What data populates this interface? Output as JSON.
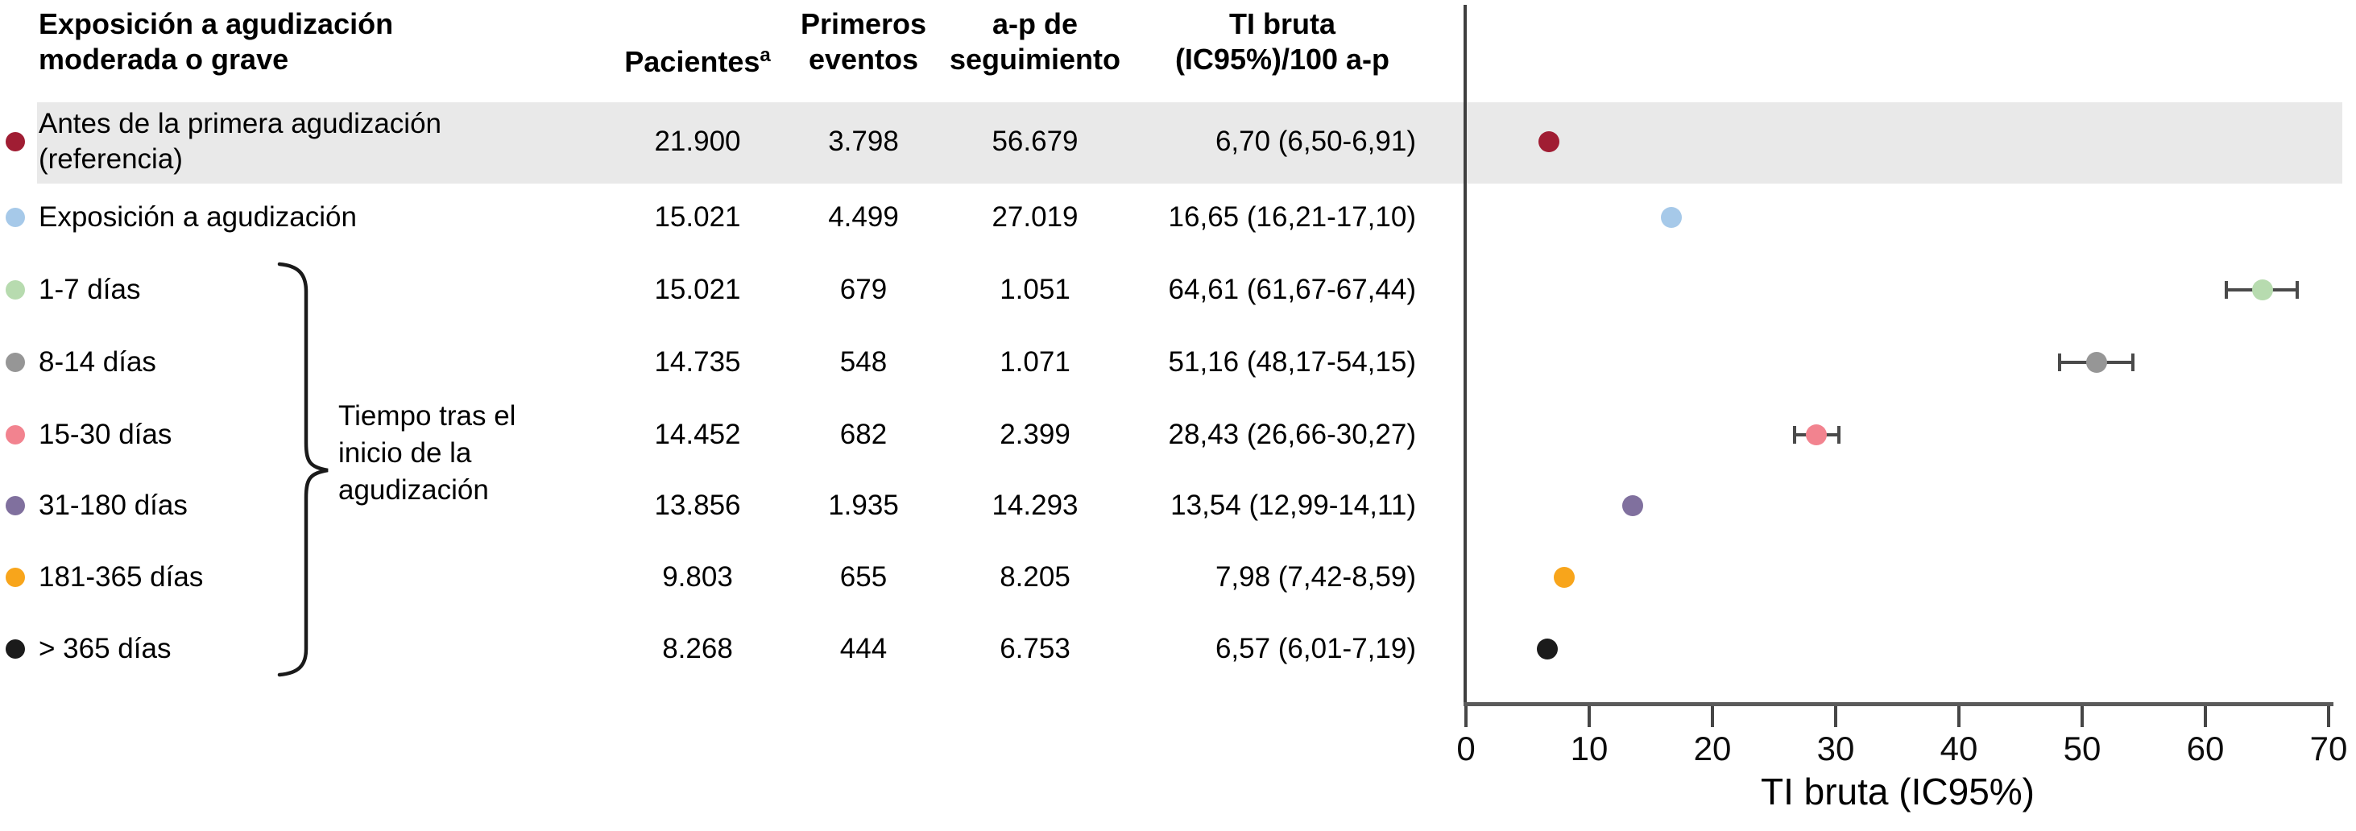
{
  "table": {
    "headers": {
      "exposure_line1": "Exposición a agudización",
      "exposure_line2": "moderada o grave",
      "pacientes": "Pacientes",
      "pacientes_sup": "a",
      "eventos_line1": "Primeros",
      "eventos_line2": "eventos",
      "ap_line1": "a-p de",
      "ap_line2": "seguimiento",
      "ti_line1": "TI bruta",
      "ti_line2": "(IC95%)/100 a-p"
    },
    "rows": [
      {
        "label": "Antes de la primera agudización (referencia)",
        "pacientes": "21.900",
        "eventos": "3.798",
        "ap": "56.679",
        "ti": "6,70 (6,50-6,91)"
      },
      {
        "label": "Exposición a agudización",
        "pacientes": "15.021",
        "eventos": "4.499",
        "ap": "27.019",
        "ti": "16,65 (16,21-17,10)"
      },
      {
        "label": "1-7 días",
        "pacientes": "15.021",
        "eventos": "679",
        "ap": "1.051",
        "ti": "64,61 (61,67-67,44)"
      },
      {
        "label": "8-14 días",
        "pacientes": "14.735",
        "eventos": "548",
        "ap": "1.071",
        "ti": "51,16 (48,17-54,15)"
      },
      {
        "label": "15-30 días",
        "pacientes": "14.452",
        "eventos": "682",
        "ap": "2.399",
        "ti": "28,43 (26,66-30,27)"
      },
      {
        "label": "31-180 días",
        "pacientes": "13.856",
        "eventos": "1.935",
        "ap": "14.293",
        "ti": "13,54 (12,99-14,11)"
      },
      {
        "label": "181-365 días",
        "pacientes": "9.803",
        "eventos": "655",
        "ap": "8.205",
        "ti": "7,98 (7,42-8,59)"
      },
      {
        "label": "> 365 días",
        "pacientes": "8.268",
        "eventos": "444",
        "ap": "6.753",
        "ti": "6,57 (6,01-7,19)"
      }
    ]
  },
  "bracket": {
    "label_line1": "Tiempo tras el",
    "label_line2": "inicio de la",
    "label_line3": "agudización"
  },
  "colors": {
    "reference_band": "#e9e9e9",
    "error_bar": "#4a4a4a",
    "axis": "#3f3f3f"
  },
  "chart_data": {
    "type": "scatter",
    "title": "",
    "xlabel": "TI bruta (IC95%)",
    "xlim": [
      0,
      70
    ],
    "x_ticks": [
      0,
      10,
      20,
      30,
      40,
      50,
      60,
      70
    ],
    "grid": false,
    "legend_position": "left-table-dots",
    "series": [
      {
        "name": "Antes de la primera agudización (referencia)",
        "value": 6.7,
        "ci": [
          6.5,
          6.91
        ],
        "color": "#a01d33",
        "shaded_reference": true
      },
      {
        "name": "Exposición a agudización",
        "value": 16.65,
        "ci": [
          16.21,
          17.1
        ],
        "color": "#a6c9e9"
      },
      {
        "name": "1-7 días",
        "value": 64.61,
        "ci": [
          61.67,
          67.44
        ],
        "color": "#b7dbaf"
      },
      {
        "name": "8-14 días",
        "value": 51.16,
        "ci": [
          48.17,
          54.15
        ],
        "color": "#969696"
      },
      {
        "name": "15-30 días",
        "value": 28.43,
        "ci": [
          26.66,
          30.27
        ],
        "color": "#f2838f"
      },
      {
        "name": "31-180 días",
        "value": 13.54,
        "ci": [
          12.99,
          14.11
        ],
        "color": "#80709e"
      },
      {
        "name": "181-365 días",
        "value": 7.98,
        "ci": [
          7.42,
          8.59
        ],
        "color": "#f8a51b"
      },
      {
        "name": "> 365 días",
        "value": 6.57,
        "ci": [
          6.01,
          7.19
        ],
        "color": "#1b1b1b"
      }
    ]
  }
}
